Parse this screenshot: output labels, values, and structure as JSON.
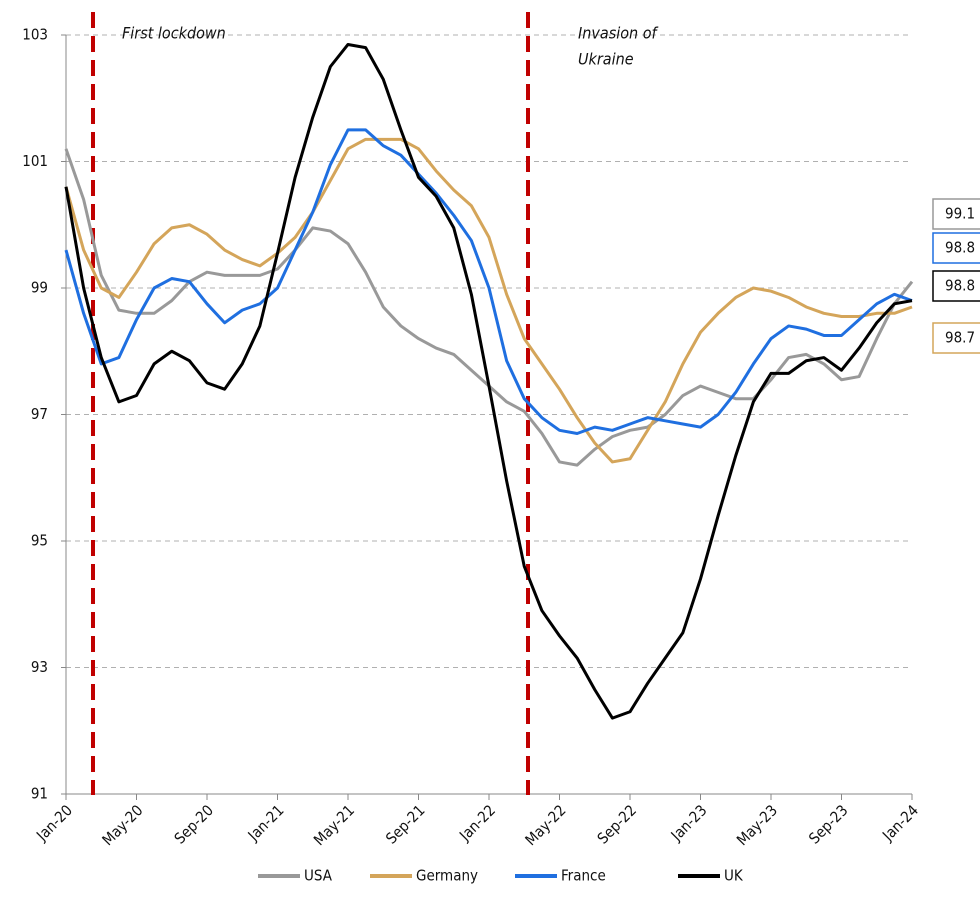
{
  "chart_data": {
    "type": "line",
    "categories": [
      "Jan-20",
      null,
      null,
      null,
      "May-20",
      null,
      null,
      null,
      "Sep-20",
      null,
      null,
      null,
      "Jan-21",
      null,
      null,
      null,
      "May-21",
      null,
      null,
      null,
      "Sep-21",
      null,
      null,
      null,
      "Jan-22",
      null,
      null,
      null,
      "May-22",
      null,
      null,
      null,
      "Sep-22",
      null,
      null,
      null,
      "Jan-23",
      null,
      null,
      null,
      "May-23",
      null,
      null,
      null,
      "Sep-23",
      null,
      null,
      null,
      "Jan-24"
    ],
    "ylim": [
      91,
      103
    ],
    "yticks": [
      91,
      93,
      95,
      97,
      99,
      101,
      103
    ],
    "grid": true,
    "annotations": [
      {
        "lines": [
          "First lockdown"
        ],
        "color": "#c00000"
      },
      {
        "lines": [
          "Invasion of",
          "Ukraine"
        ],
        "color": "#c00000"
      }
    ],
    "series": [
      {
        "name": "USA",
        "color": "#999999",
        "end_label": 99.1,
        "values": [
          101.2,
          100.4,
          99.2,
          98.65,
          98.6,
          98.6,
          98.8,
          99.1,
          99.25,
          99.2,
          99.2,
          99.2,
          99.3,
          99.6,
          99.95,
          99.9,
          99.7,
          99.25,
          98.7,
          98.4,
          98.2,
          98.05,
          97.95,
          97.7,
          97.45,
          97.2,
          97.05,
          96.7,
          96.25,
          96.2,
          96.45,
          96.65,
          96.75,
          96.8,
          97.0,
          97.3,
          97.45,
          97.35,
          97.25,
          97.25,
          97.55,
          97.9,
          97.95,
          97.8,
          97.55,
          97.6,
          98.2,
          98.75,
          99.1
        ]
      },
      {
        "name": "Germany",
        "color": "#d4a55a",
        "end_label": 98.7,
        "values": [
          100.6,
          99.6,
          99.0,
          98.85,
          99.25,
          99.7,
          99.95,
          100.0,
          99.85,
          99.6,
          99.45,
          99.35,
          99.55,
          99.8,
          100.2,
          100.7,
          101.2,
          101.35,
          101.35,
          101.35,
          101.2,
          100.85,
          100.55,
          100.3,
          99.8,
          98.9,
          98.2,
          97.8,
          97.4,
          96.95,
          96.55,
          96.25,
          96.3,
          96.75,
          97.2,
          97.8,
          98.3,
          98.6,
          98.85,
          99.0,
          98.95,
          98.85,
          98.7,
          98.6,
          98.55,
          98.55,
          98.6,
          98.6,
          98.7
        ]
      },
      {
        "name": "France",
        "color": "#1f6fe0",
        "end_label": 98.8,
        "values": [
          99.6,
          98.6,
          97.8,
          97.9,
          98.5,
          99.0,
          99.15,
          99.1,
          98.75,
          98.45,
          98.65,
          98.75,
          99.0,
          99.6,
          100.2,
          100.95,
          101.5,
          101.5,
          101.25,
          101.1,
          100.8,
          100.5,
          100.15,
          99.75,
          99.0,
          97.85,
          97.25,
          96.95,
          96.75,
          96.7,
          96.8,
          96.75,
          96.85,
          96.95,
          96.9,
          96.85,
          96.8,
          97.0,
          97.35,
          97.8,
          98.2,
          98.4,
          98.35,
          98.25,
          98.25,
          98.5,
          98.75,
          98.9,
          98.8
        ]
      },
      {
        "name": "UK",
        "color": "#000000",
        "end_label": 98.8,
        "values": [
          100.6,
          99.0,
          97.9,
          97.2,
          97.3,
          97.8,
          98.0,
          97.85,
          97.5,
          97.4,
          97.8,
          98.4,
          99.55,
          100.75,
          101.7,
          102.5,
          102.85,
          102.8,
          102.3,
          101.5,
          100.75,
          100.45,
          99.95,
          98.9,
          97.45,
          95.95,
          94.6,
          93.9,
          93.5,
          93.15,
          92.65,
          92.2,
          92.3,
          92.75,
          93.15,
          93.55,
          94.4,
          95.4,
          96.35,
          97.2,
          97.65,
          97.65,
          97.85,
          97.9,
          97.7,
          98.05,
          98.45,
          98.75,
          98.8
        ]
      }
    ]
  }
}
